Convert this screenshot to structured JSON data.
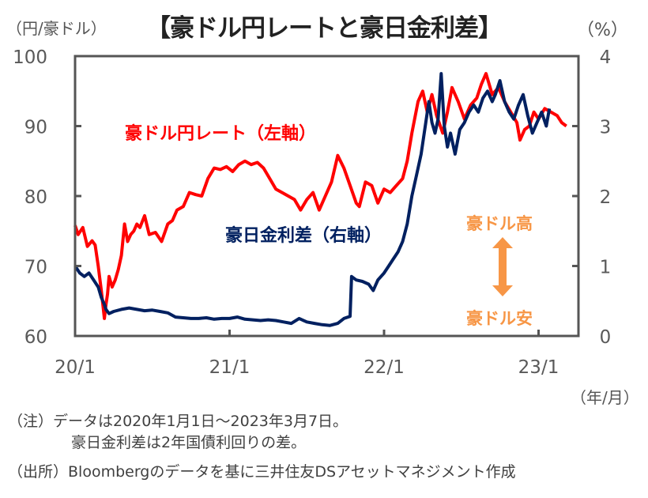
{
  "chart_data": {
    "type": "line",
    "title": "【豪ドル円レートと豪日金利差】",
    "left_axis": {
      "label": "（円/豪ドル）",
      "ylim": [
        60,
        100
      ],
      "ticks": [
        "100",
        "90",
        "80",
        "70",
        "60"
      ]
    },
    "right_axis": {
      "label": "（%）",
      "ylim": [
        0,
        4
      ],
      "ticks": [
        "4",
        "3",
        "2",
        "1",
        "0"
      ]
    },
    "x_axis": {
      "label": "（年/月）",
      "range": [
        2020.0,
        2023.25
      ],
      "ticks": [
        "20/1",
        "21/1",
        "22/1",
        "23/1"
      ]
    },
    "grid": false,
    "series": [
      {
        "name": "豪ドル円レート（左軸）",
        "axis": "left",
        "color": "#ff0000",
        "x": [
          2020.0,
          2020.02,
          2020.05,
          2020.08,
          2020.11,
          2020.13,
          2020.15,
          2020.17,
          2020.19,
          2020.2,
          2020.21,
          2020.22,
          2020.24,
          2020.26,
          2020.28,
          2020.3,
          2020.32,
          2020.34,
          2020.36,
          2020.38,
          2020.4,
          2020.42,
          2020.45,
          2020.48,
          2020.52,
          2020.56,
          2020.6,
          2020.63,
          2020.66,
          2020.7,
          2020.74,
          2020.78,
          2020.82,
          2020.86,
          2020.9,
          2020.94,
          2020.98,
          2021.02,
          2021.06,
          2021.1,
          2021.14,
          2021.18,
          2021.22,
          2021.26,
          2021.3,
          2021.34,
          2021.38,
          2021.42,
          2021.46,
          2021.5,
          2021.54,
          2021.58,
          2021.62,
          2021.66,
          2021.7,
          2021.74,
          2021.78,
          2021.82,
          2021.84,
          2021.88,
          2021.92,
          2021.96,
          2022.0,
          2022.04,
          2022.08,
          2022.12,
          2022.15,
          2022.18,
          2022.22,
          2022.25,
          2022.28,
          2022.31,
          2022.34,
          2022.38,
          2022.41,
          2022.44,
          2022.48,
          2022.52,
          2022.56,
          2022.6,
          2022.63,
          2022.66,
          2022.7,
          2022.74,
          2022.78,
          2022.82,
          2022.86,
          2022.88,
          2022.91,
          2022.94,
          2022.97,
          2023.0,
          2023.04,
          2023.08,
          2023.12,
          2023.15,
          2023.18
        ],
        "y": [
          75.8,
          74.5,
          75.5,
          72.8,
          73.6,
          73.0,
          70.0,
          66.5,
          62.5,
          64.5,
          66.0,
          68.5,
          67.0,
          68.0,
          69.5,
          71.5,
          76.0,
          73.5,
          74.5,
          75.0,
          76.0,
          75.5,
          77.2,
          74.5,
          74.8,
          73.5,
          76.0,
          76.5,
          78.0,
          78.5,
          80.5,
          80.2,
          80.0,
          82.5,
          84.0,
          83.8,
          84.2,
          83.5,
          84.5,
          85.0,
          84.5,
          84.8,
          84.0,
          82.5,
          81.0,
          80.5,
          80.0,
          79.5,
          78.0,
          79.5,
          80.5,
          78.0,
          80.0,
          82.0,
          85.8,
          84.0,
          81.5,
          79.0,
          78.5,
          82.0,
          81.5,
          79.0,
          81.0,
          80.5,
          81.5,
          82.5,
          85.0,
          89.0,
          93.5,
          95.0,
          92.0,
          94.5,
          91.5,
          89.0,
          92.0,
          95.5,
          93.5,
          91.0,
          93.0,
          94.0,
          96.0,
          97.5,
          94.5,
          95.5,
          93.5,
          92.0,
          90.5,
          88.0,
          89.5,
          90.0,
          92.0,
          91.0,
          92.5,
          92.0,
          91.5,
          90.5,
          90.0
        ]
      },
      {
        "name": "豪日金利差（右軸）",
        "axis": "right",
        "color": "#002060",
        "x": [
          2020.0,
          2020.03,
          2020.06,
          2020.09,
          2020.12,
          2020.15,
          2020.17,
          2020.19,
          2020.2,
          2020.22,
          2020.25,
          2020.3,
          2020.35,
          2020.4,
          2020.45,
          2020.5,
          2020.55,
          2020.6,
          2020.65,
          2020.7,
          2020.75,
          2020.8,
          2020.85,
          2020.9,
          2020.95,
          2021.0,
          2021.05,
          2021.1,
          2021.15,
          2021.2,
          2021.25,
          2021.3,
          2021.35,
          2021.4,
          2021.45,
          2021.5,
          2021.55,
          2021.6,
          2021.65,
          2021.7,
          2021.74,
          2021.78,
          2021.79,
          2021.82,
          2021.86,
          2021.9,
          2021.93,
          2021.96,
          2022.0,
          2022.03,
          2022.06,
          2022.09,
          2022.12,
          2022.15,
          2022.18,
          2022.21,
          2022.24,
          2022.27,
          2022.29,
          2022.31,
          2022.33,
          2022.35,
          2022.37,
          2022.39,
          2022.41,
          2022.43,
          2022.46,
          2022.49,
          2022.52,
          2022.55,
          2022.58,
          2022.61,
          2022.64,
          2022.67,
          2022.7,
          2022.72,
          2022.75,
          2022.78,
          2022.81,
          2022.84,
          2022.87,
          2022.9,
          2022.93,
          2022.96,
          2022.99,
          2023.02,
          2023.05,
          2023.07
        ],
        "y": [
          1.0,
          0.9,
          0.85,
          0.9,
          0.8,
          0.7,
          0.55,
          0.45,
          0.38,
          0.32,
          0.35,
          0.38,
          0.4,
          0.38,
          0.36,
          0.37,
          0.35,
          0.33,
          0.27,
          0.26,
          0.25,
          0.25,
          0.26,
          0.24,
          0.25,
          0.25,
          0.27,
          0.24,
          0.23,
          0.22,
          0.23,
          0.22,
          0.2,
          0.18,
          0.25,
          0.2,
          0.18,
          0.16,
          0.15,
          0.18,
          0.25,
          0.28,
          0.85,
          0.8,
          0.78,
          0.74,
          0.65,
          0.8,
          0.9,
          1.0,
          1.1,
          1.2,
          1.35,
          1.6,
          2.0,
          2.3,
          2.6,
          3.05,
          3.35,
          3.05,
          2.9,
          3.1,
          3.75,
          3.0,
          2.7,
          2.9,
          2.6,
          2.95,
          3.05,
          3.2,
          3.3,
          3.2,
          3.4,
          3.5,
          3.35,
          3.45,
          3.65,
          3.35,
          3.2,
          3.1,
          3.3,
          3.45,
          3.15,
          2.9,
          3.05,
          3.2,
          3.0,
          3.25
        ]
      }
    ],
    "annotations": {
      "aud_high": "豪ドル高",
      "aud_low": "豪ドル安",
      "arrow_color": "#f79646"
    }
  },
  "notes": {
    "line1": "（注）データは2020年1月1日～2023年3月7日。",
    "line2": "豪日金利差は2年国債利回りの差。",
    "line3": "（出所）Bloombergのデータを基に三井住友DSアセットマネジメント作成"
  }
}
